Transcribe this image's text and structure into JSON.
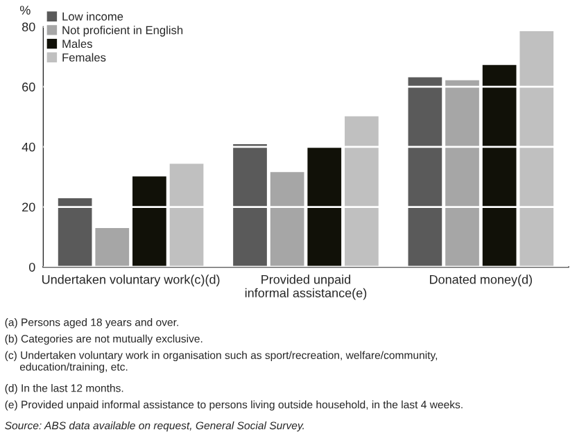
{
  "chart_data": {
    "type": "bar",
    "ylabel": "%",
    "categories": [
      "Undertaken voluntary work(c)(d)",
      "Provided unpaid\ninformal assistance(e)",
      "Donated money(d)"
    ],
    "series": [
      {
        "name": "Low income",
        "color": "#5a5a5a",
        "values": [
          23.2,
          41.2,
          63.5
        ]
      },
      {
        "name": "Not proficient in English",
        "color": "#a6a6a6",
        "values": [
          13.3,
          31.9,
          62.5
        ]
      },
      {
        "name": "Males",
        "color": "#111108",
        "values": [
          30.5,
          40.2,
          67.6
        ]
      },
      {
        "name": "Females",
        "color": "#c0c0c0",
        "values": [
          34.7,
          50.5,
          78.8
        ]
      }
    ],
    "ylim": [
      0,
      80
    ],
    "yticks": [
      0,
      20,
      40,
      60,
      80
    ],
    "grid": "y",
    "legend": "top left",
    "annotations": [
      "(a) Persons aged 18 years and over.",
      "(b) Categories are not mutually exclusive.",
      "(c) Undertaken voluntary work in organisation such as sport/recreation, welfare/community,\n     education/training, etc.",
      "(d) In the last 12 months.",
      "(e) Provided unpaid informal assistance to persons living outside household, in the last 4 weeks.",
      "Source: ABS data available on request, General Social Survey."
    ]
  }
}
